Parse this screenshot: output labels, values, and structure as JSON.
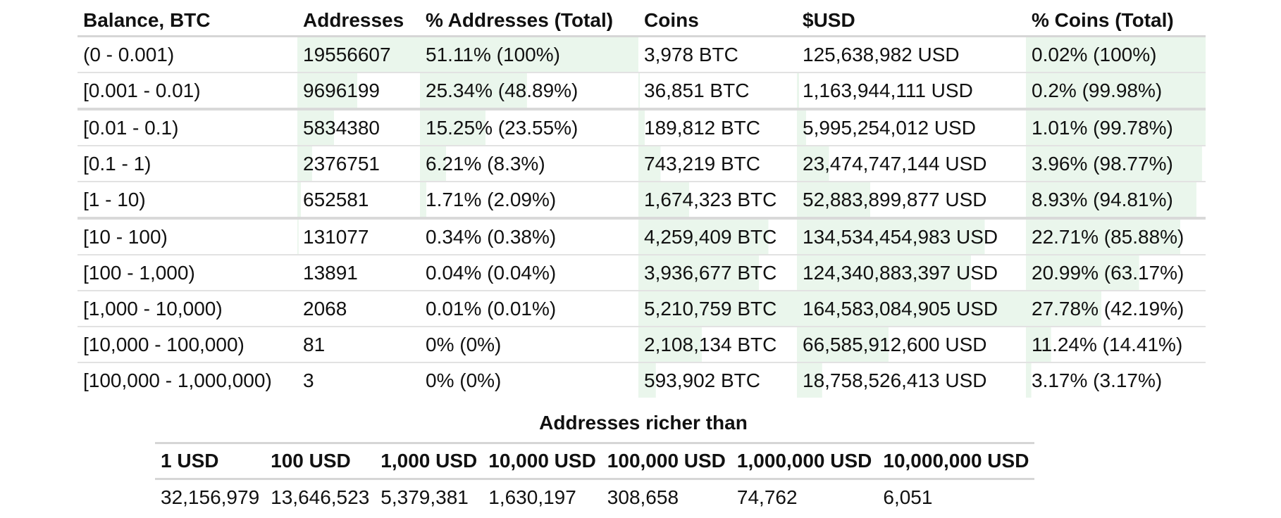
{
  "distribution": {
    "headers": [
      "Balance, BTC",
      "Addresses",
      "% Addresses (Total)",
      "Coins",
      "$USD",
      "% Coins (Total)"
    ],
    "rows": [
      {
        "range": "(0 - 0.001)",
        "addresses": "19556607",
        "pct_addr": "51.11% (100%)",
        "coins": "3,978 BTC",
        "usd": "125,638,982 USD",
        "pct_coins": "0.02% (100%)",
        "addr_share": 1.0,
        "pct_addr_share": 1.0,
        "coins_share": 0.0,
        "usd_share": 0.0,
        "pct_coins_share": 1.0
      },
      {
        "range": "[0.001 - 0.01)",
        "addresses": "9696199",
        "pct_addr": "25.34% (48.89%)",
        "coins": "36,851 BTC",
        "usd": "1,163,944,111 USD",
        "pct_coins": "0.2% (99.98%)",
        "addr_share": 0.49,
        "pct_addr_share": 0.49,
        "coins_share": 0.01,
        "usd_share": 0.01,
        "pct_coins_share": 1.0
      },
      {
        "range": "[0.01 - 0.1)",
        "addresses": "5834380",
        "pct_addr": "15.25% (23.55%)",
        "coins": "189,812 BTC",
        "usd": "5,995,254,012 USD",
        "pct_coins": "1.01% (99.78%)",
        "addr_share": 0.3,
        "pct_addr_share": 0.3,
        "coins_share": 0.04,
        "usd_share": 0.04,
        "pct_coins_share": 1.0
      },
      {
        "range": "[0.1 - 1)",
        "addresses": "2376751",
        "pct_addr": "6.21% (8.3%)",
        "coins": "743,219 BTC",
        "usd": "23,474,747,144 USD",
        "pct_coins": "3.96% (98.77%)",
        "addr_share": 0.12,
        "pct_addr_share": 0.12,
        "coins_share": 0.14,
        "usd_share": 0.14,
        "pct_coins_share": 0.98
      },
      {
        "range": "[1 - 10)",
        "addresses": "652581",
        "pct_addr": "1.71% (2.09%)",
        "coins": "1,674,323 BTC",
        "usd": "52,883,899,877 USD",
        "pct_coins": "8.93% (94.81%)",
        "addr_share": 0.03,
        "pct_addr_share": 0.03,
        "coins_share": 0.32,
        "usd_share": 0.32,
        "pct_coins_share": 0.95
      },
      {
        "range": "[10 - 100)",
        "addresses": "131077",
        "pct_addr": "0.34% (0.38%)",
        "coins": "4,259,409 BTC",
        "usd": "134,534,454,983 USD",
        "pct_coins": "22.71% (85.88%)",
        "addr_share": 0.01,
        "pct_addr_share": 0.0,
        "coins_share": 0.82,
        "usd_share": 0.82,
        "pct_coins_share": 0.86
      },
      {
        "range": "[100 - 1,000)",
        "addresses": "13891",
        "pct_addr": "0.04% (0.04%)",
        "coins": "3,936,677 BTC",
        "usd": "124,340,883,397 USD",
        "pct_coins": "20.99% (63.17%)",
        "addr_share": 0.0,
        "pct_addr_share": 0.0,
        "coins_share": 0.76,
        "usd_share": 0.76,
        "pct_coins_share": 0.63
      },
      {
        "range": "[1,000 - 10,000)",
        "addresses": "2068",
        "pct_addr": "0.01% (0.01%)",
        "coins": "5,210,759 BTC",
        "usd": "164,583,084,905 USD",
        "pct_coins": "27.78% (42.19%)",
        "addr_share": 0.0,
        "pct_addr_share": 0.0,
        "coins_share": 1.0,
        "usd_share": 1.0,
        "pct_coins_share": 0.42
      },
      {
        "range": "[10,000 - 100,000)",
        "addresses": "81",
        "pct_addr": "0% (0%)",
        "coins": "2,108,134 BTC",
        "usd": "66,585,912,600 USD",
        "pct_coins": "11.24% (14.41%)",
        "addr_share": 0.0,
        "pct_addr_share": 0.0,
        "coins_share": 0.4,
        "usd_share": 0.4,
        "pct_coins_share": 0.14
      },
      {
        "range": "[100,000 - 1,000,000)",
        "addresses": "3",
        "pct_addr": "0% (0%)",
        "coins": "593,902 BTC",
        "usd": "18,758,526,413 USD",
        "pct_coins": "3.17% (3.17%)",
        "addr_share": 0.0,
        "pct_addr_share": 0.0,
        "coins_share": 0.11,
        "usd_share": 0.11,
        "pct_coins_share": 0.03
      }
    ],
    "bar_color": "#eaf6ec"
  },
  "richer_than": {
    "title": "Addresses richer than",
    "headers": [
      "1 USD",
      "100 USD",
      "1,000 USD",
      "10,000 USD",
      "100,000 USD",
      "1,000,000 USD",
      "10,000,000 USD"
    ],
    "values": [
      "32,156,979",
      "13,646,523",
      "5,379,381",
      "1,630,197",
      "308,658",
      "74,762",
      "6,051"
    ]
  }
}
